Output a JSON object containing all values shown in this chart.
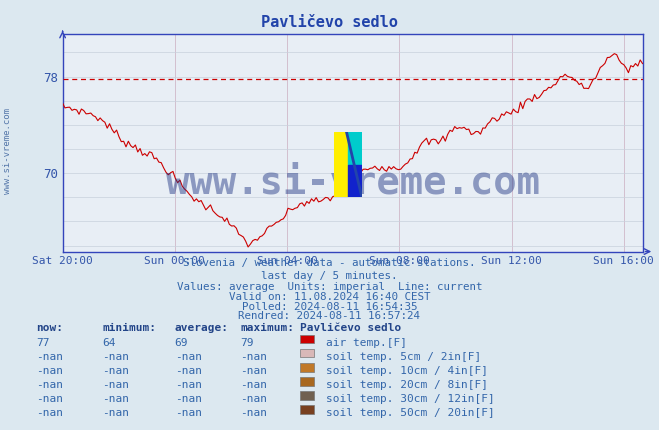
{
  "title": "Pavličevo sedlo",
  "bg_color": "#dce8f0",
  "plot_bg": "#e8eef5",
  "line_color": "#cc0000",
  "grid_color_minor": "#d0d8e8",
  "grid_color_major": "#c0ccd8",
  "avg_value": 77.8,
  "ylim_min": 63.5,
  "ylim_max": 81.5,
  "yticks": [
    70,
    78
  ],
  "title_color": "#2244aa",
  "tick_color": "#3355aa",
  "axis_color": "#3344bb",
  "xtick_labels": [
    "Sat 20:00",
    "Sun 00:00",
    "Sun 04:00",
    "Sun 08:00",
    "Sun 12:00",
    "Sun 16:00"
  ],
  "x_tick_hours": [
    0,
    4,
    8,
    12,
    16,
    20
  ],
  "text_lines": [
    "Slovenia / weather data - automatic stations.",
    "last day / 5 minutes.",
    "Values: average  Units: imperial  Line: current",
    "Valid on: 11.08.2024 16:40 CEST",
    "Polled: 2024-08-11 16:54:35",
    "Rendred: 2024-08-11 16:57:24"
  ],
  "table_header": [
    "now:",
    "minimum:",
    "average:",
    "maximum:",
    "Pavličevo sedlo"
  ],
  "table_rows": [
    [
      "77",
      "64",
      "69",
      "79",
      "#cc0000",
      "air temp.[F]"
    ],
    [
      "-nan",
      "-nan",
      "-nan",
      "-nan",
      "#d8b8b8",
      "soil temp. 5cm / 2in[F]"
    ],
    [
      "-nan",
      "-nan",
      "-nan",
      "-nan",
      "#c07828",
      "soil temp. 10cm / 4in[F]"
    ],
    [
      "-nan",
      "-nan",
      "-nan",
      "-nan",
      "#a86820",
      "soil temp. 20cm / 8in[F]"
    ],
    [
      "-nan",
      "-nan",
      "-nan",
      "-nan",
      "#706050",
      "soil temp. 30cm / 12in[F]"
    ],
    [
      "-nan",
      "-nan",
      "-nan",
      "-nan",
      "#784020",
      "soil temp. 50cm / 20in[F]"
    ]
  ],
  "watermark": "www.si-vreme.com",
  "watermark_color": "#1a3080",
  "sidebar_text": "www.si-vreme.com",
  "sidebar_color": "#5577aa",
  "text_color": "#3366aa",
  "header_color": "#224488"
}
